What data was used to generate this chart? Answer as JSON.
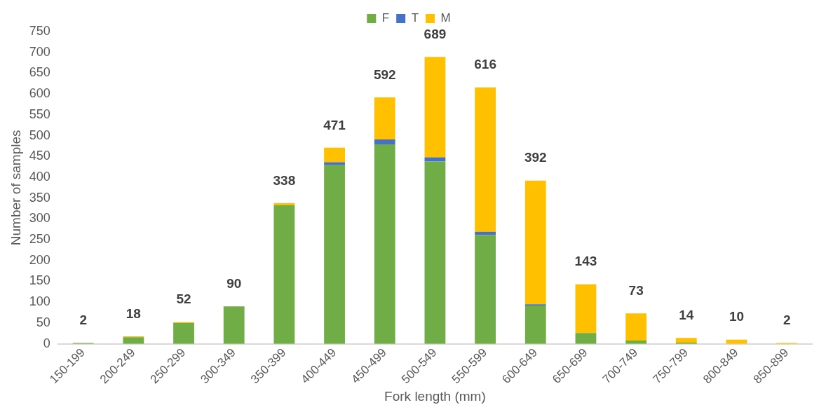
{
  "chart_data": {
    "type": "bar",
    "stacked": true,
    "xlabel": "Fork length (mm)",
    "ylabel": "Number of samples",
    "categories": [
      "150-199",
      "200-249",
      "250-299",
      "300-349",
      "350-399",
      "400-449",
      "450-499",
      "500-549",
      "550-599",
      "600-649",
      "650-699",
      "700-749",
      "750-799",
      "800-849",
      "850-899"
    ],
    "series": [
      {
        "name": "F",
        "color": "#70ad47",
        "values": [
          2,
          16,
          50,
          90,
          333,
          429,
          479,
          438,
          261,
          92,
          26,
          8,
          3,
          0,
          0
        ]
      },
      {
        "name": "T",
        "color": "#4472c4",
        "values": [
          0,
          0,
          0,
          0,
          0,
          7,
          12,
          10,
          8,
          3,
          0,
          0,
          0,
          0,
          0
        ]
      },
      {
        "name": "M",
        "color": "#ffc000",
        "values": [
          0,
          2,
          2,
          0,
          5,
          35,
          101,
          241,
          347,
          297,
          117,
          65,
          11,
          10,
          2
        ]
      }
    ],
    "totals": [
      "2",
      "18",
      "52",
      "90",
      "338",
      "471",
      "592",
      "689",
      "616",
      "392",
      "143",
      "73",
      "14",
      "10",
      "2"
    ],
    "ylim": [
      0,
      750
    ],
    "yticks": [
      0,
      50,
      100,
      150,
      200,
      250,
      300,
      350,
      400,
      450,
      500,
      550,
      600,
      650,
      700,
      750
    ],
    "legend": "top",
    "grid": false
  }
}
